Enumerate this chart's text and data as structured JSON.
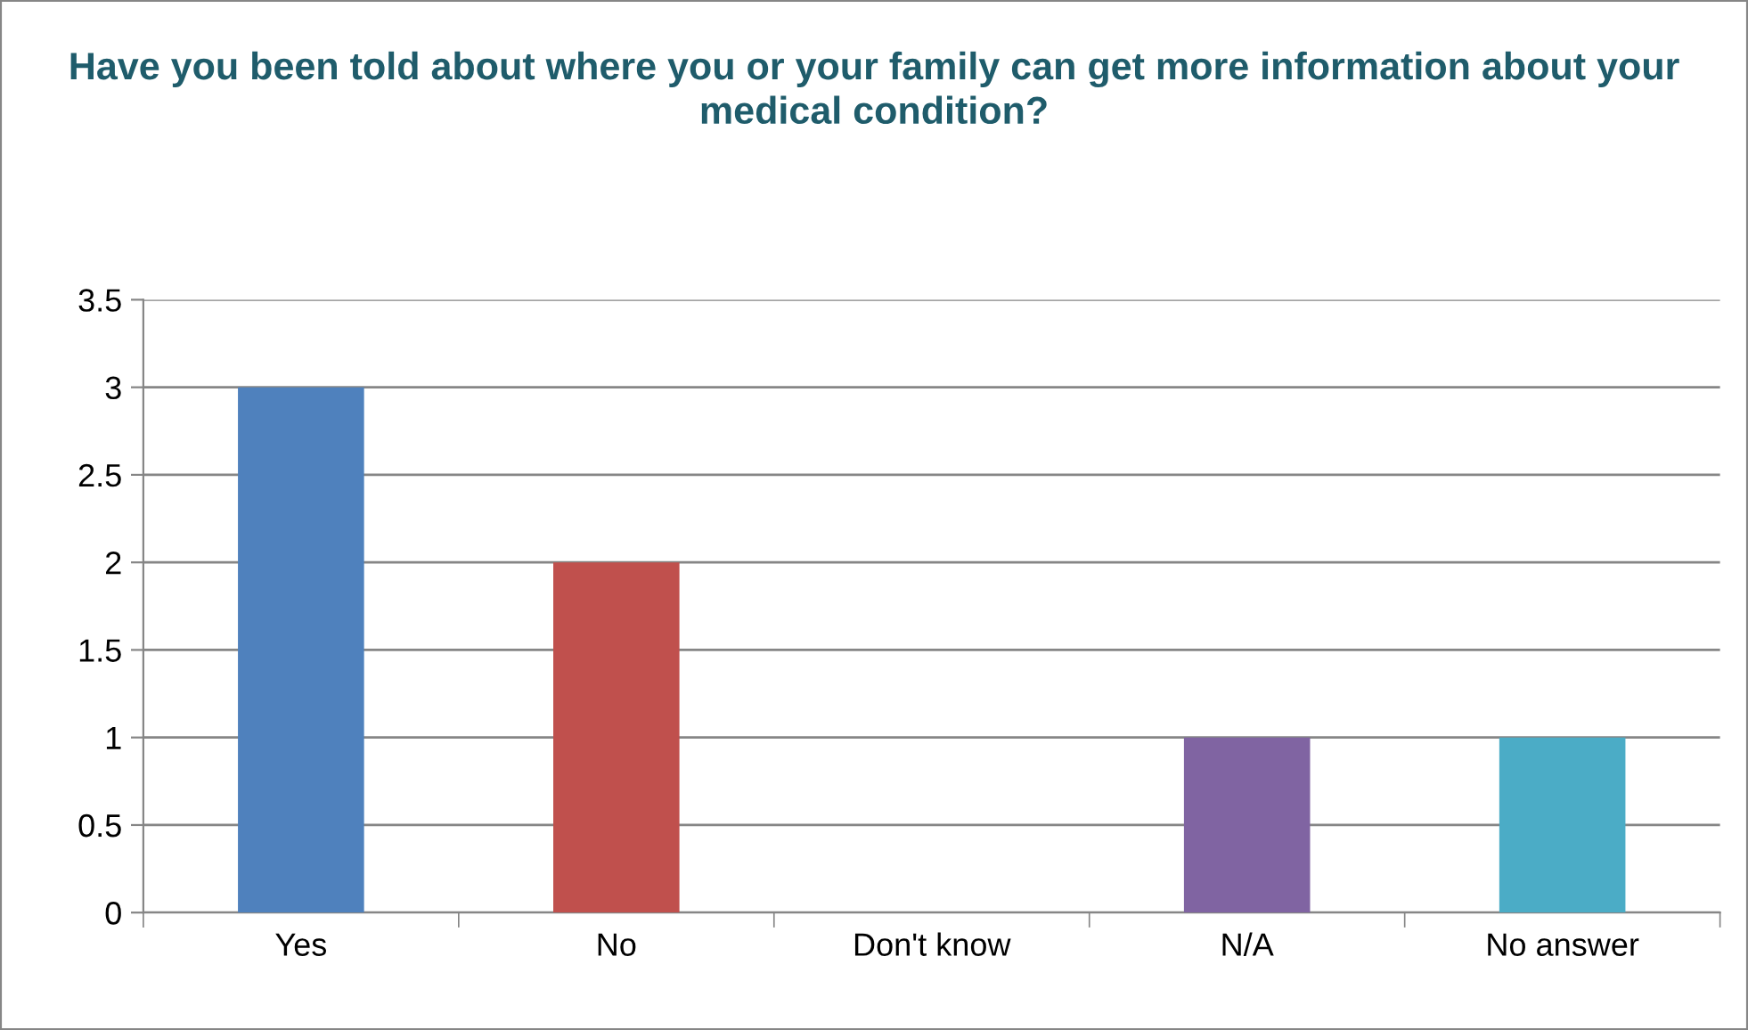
{
  "chart_data": {
    "type": "bar",
    "title": "Have you been told about where you or your family can get more information about your medical condition?",
    "categories": [
      "Yes",
      "No",
      "Don't know",
      "N/A",
      "No answer"
    ],
    "values": [
      3,
      2,
      0,
      1,
      1
    ],
    "colors": [
      "#4f81bd",
      "#c0504d",
      "#9bbb59",
      "#8064a2",
      "#4bacc6"
    ],
    "ylim": [
      0,
      3.5
    ],
    "yticks": [
      0,
      0.5,
      1,
      1.5,
      2,
      2.5,
      3,
      3.5
    ],
    "grid": "y",
    "legend": false
  }
}
